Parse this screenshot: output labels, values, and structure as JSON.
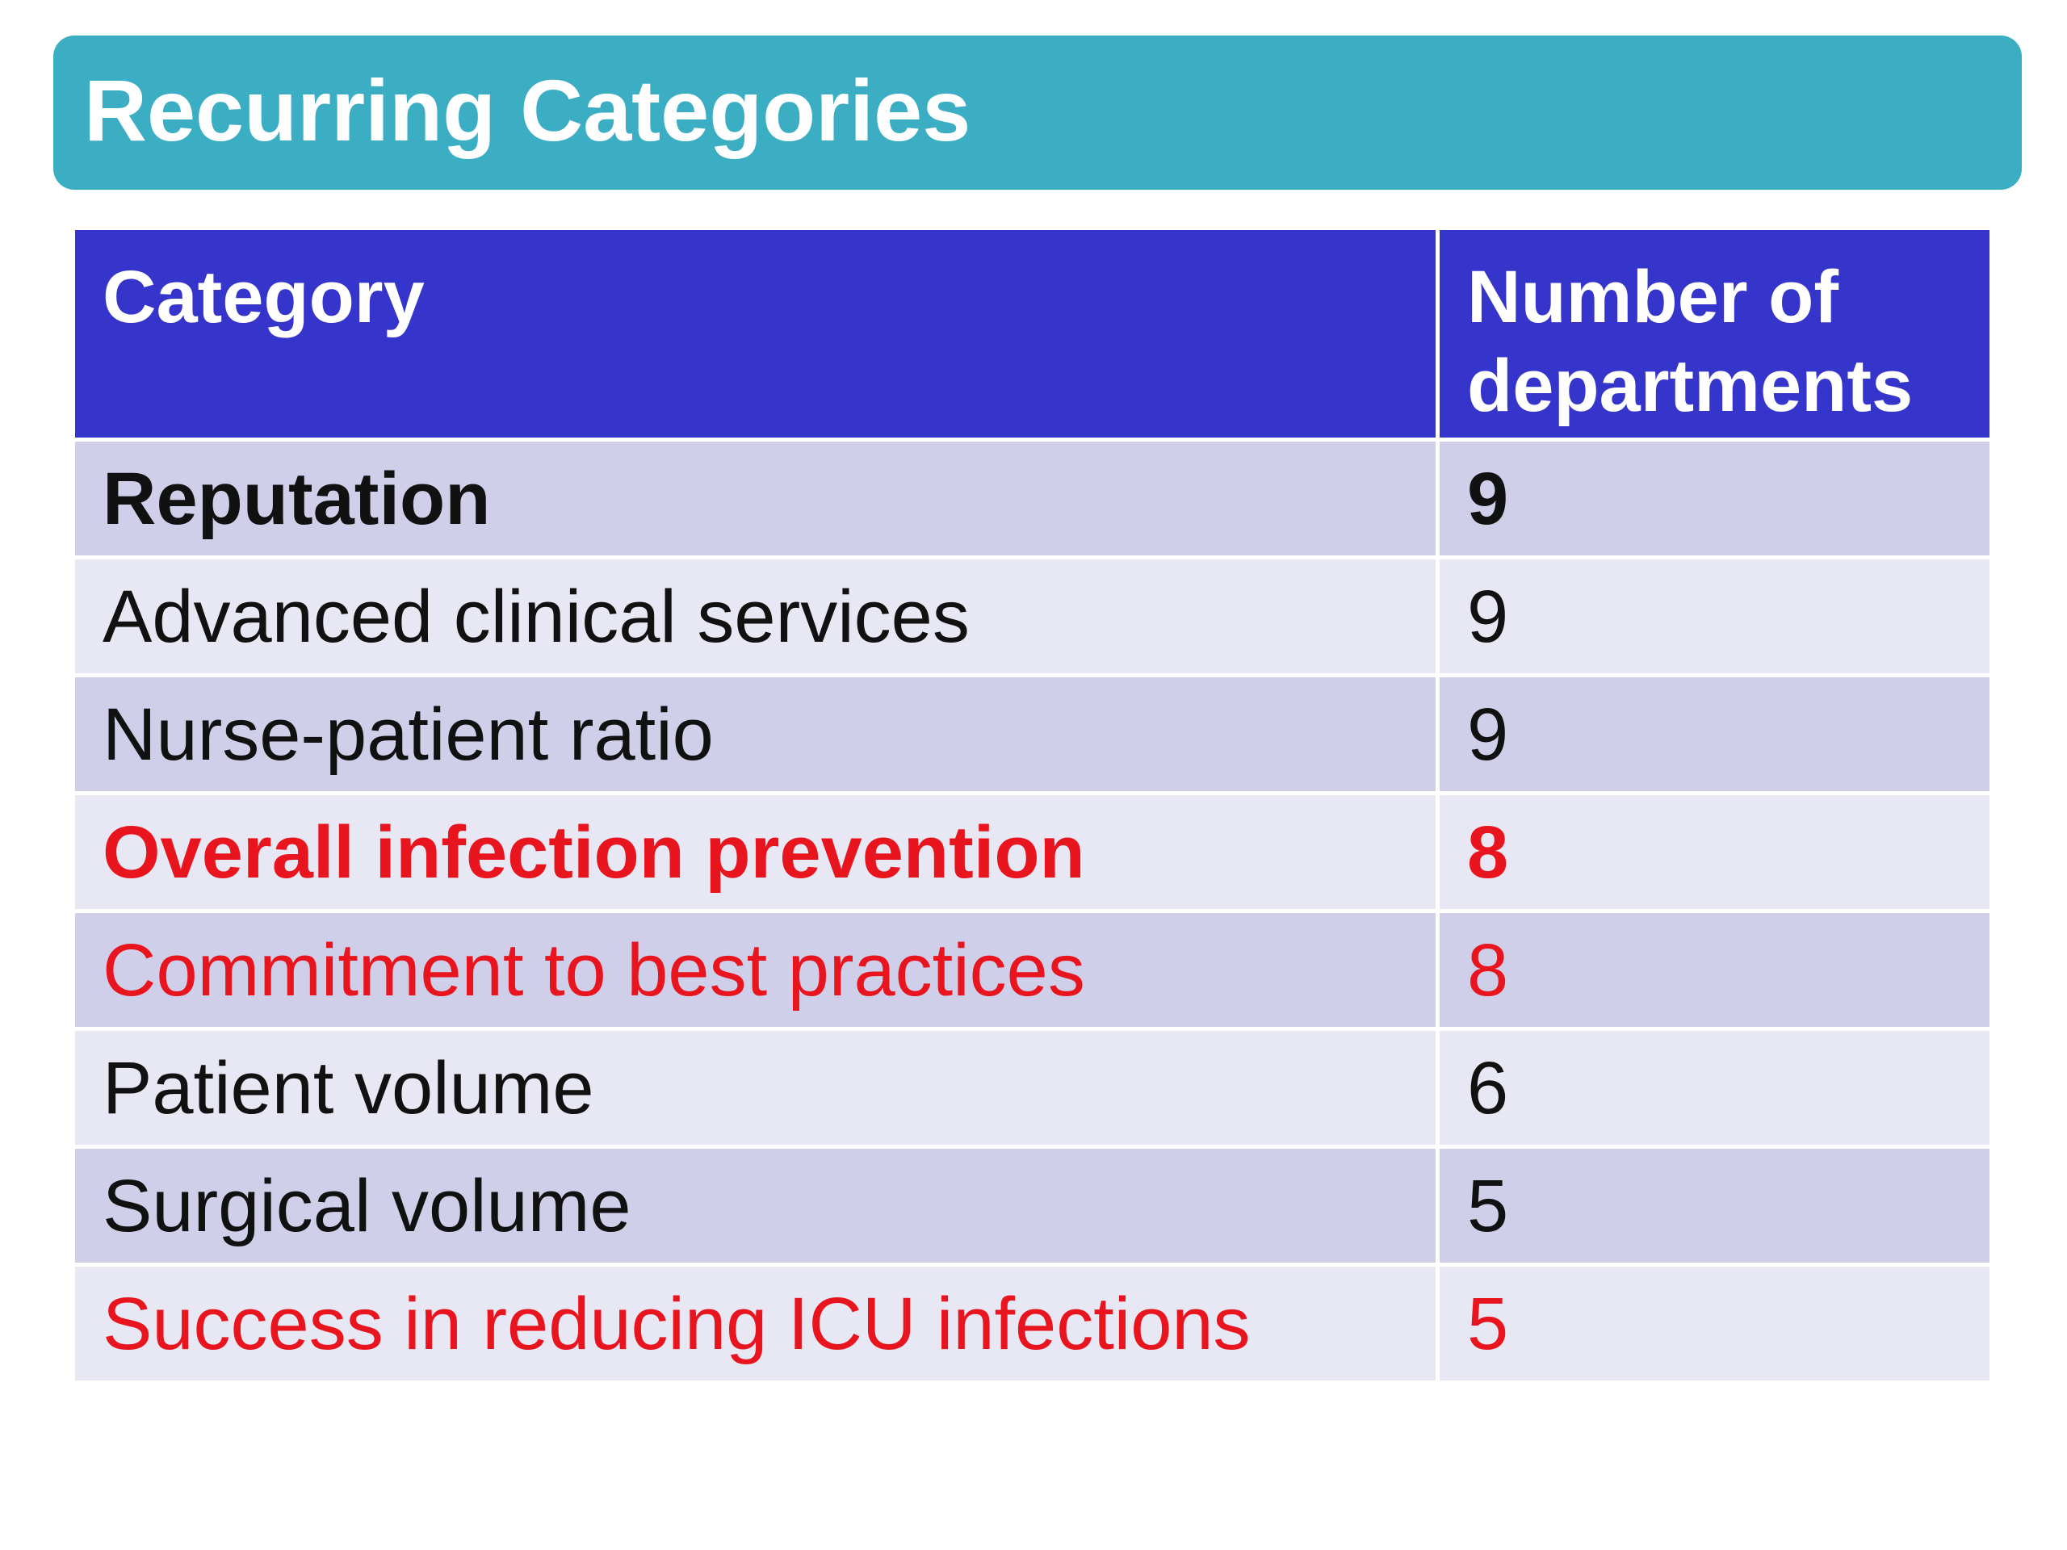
{
  "title": "Recurring Categories",
  "colors": {
    "title_bar": "#3baec3",
    "header_bg": "#3535cc",
    "row_dark": "#cfcfea",
    "row_light": "#e8e8f5",
    "text_black": "#111111",
    "text_red": "#e8141e"
  },
  "table": {
    "headers": [
      "Category",
      "Number of departments"
    ],
    "rows": [
      {
        "category": "Reputation",
        "count": "9",
        "color": "#111111",
        "bold": true
      },
      {
        "category": "Advanced clinical services",
        "count": "9",
        "color": "#111111",
        "bold": false
      },
      {
        "category": "Nurse-patient ratio",
        "count": "9",
        "color": "#111111",
        "bold": false
      },
      {
        "category": "Overall infection prevention",
        "count": "8",
        "color": "#e8141e",
        "bold": true
      },
      {
        "category": "Commitment to best practices",
        "count": "8",
        "color": "#e8141e",
        "bold": false
      },
      {
        "category": "Patient volume",
        "count": "6",
        "color": "#111111",
        "bold": false
      },
      {
        "category": "Surgical volume",
        "count": "5",
        "color": "#111111",
        "bold": false
      },
      {
        "category": "Success in reducing ICU infections",
        "count": "5",
        "color": "#e8141e",
        "bold": false
      }
    ]
  }
}
